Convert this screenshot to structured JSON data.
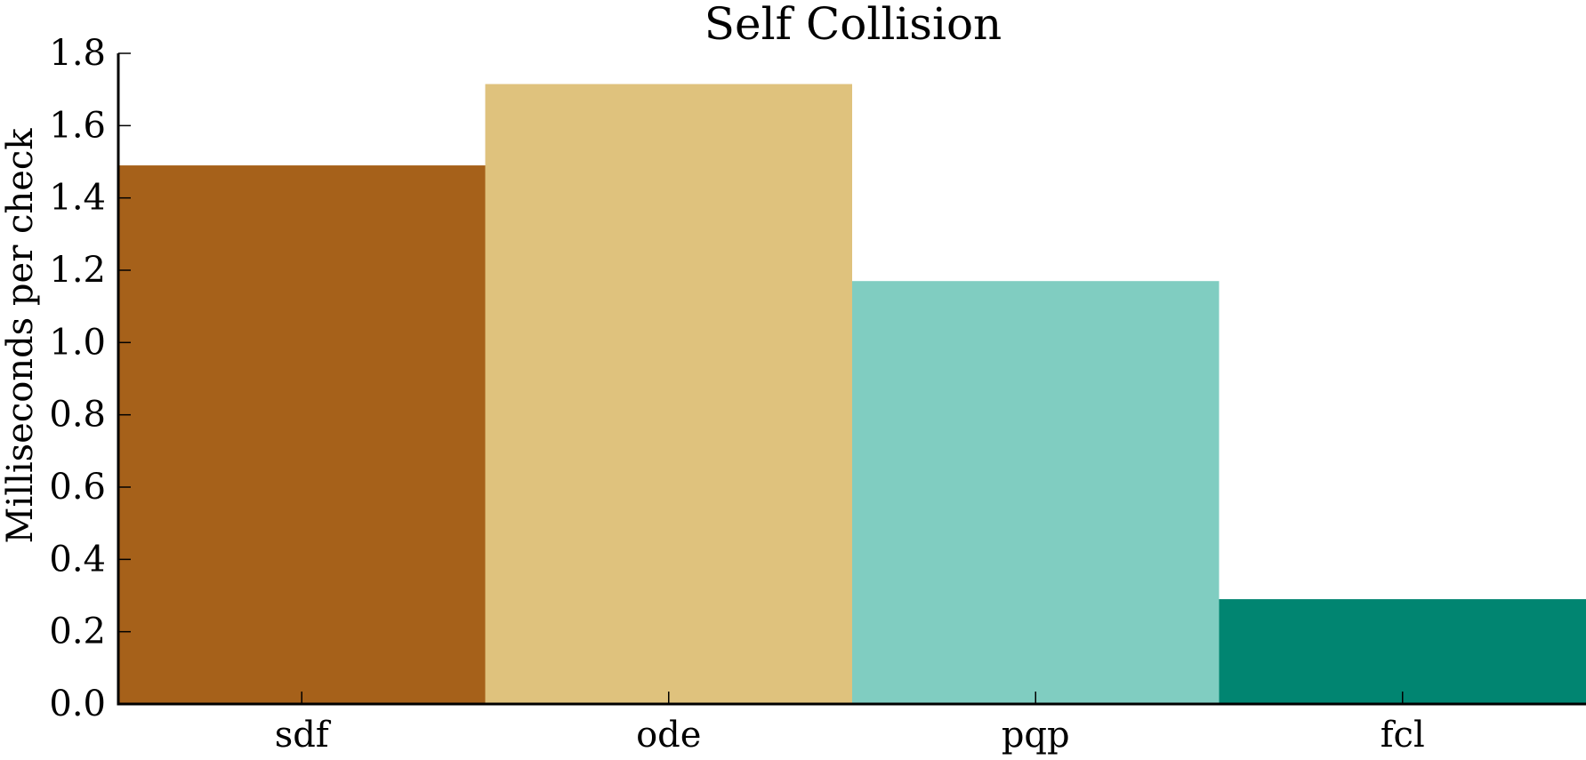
{
  "chart_data": {
    "type": "bar",
    "title": "Self Collision",
    "xlabel": "",
    "ylabel": "Milliseconds per check",
    "categories": [
      "sdf",
      "ode",
      "pqp",
      "fcl"
    ],
    "values": [
      1.49,
      1.715,
      1.17,
      0.29
    ],
    "colors": [
      "#a6611a",
      "#dfc27d",
      "#80cdc1",
      "#018571"
    ],
    "ylim": [
      0.0,
      1.8
    ],
    "yticks": [
      "0.0",
      "0.2",
      "0.4",
      "0.6",
      "0.8",
      "1.0",
      "1.2",
      "1.4",
      "1.6",
      "1.8"
    ],
    "grid": false,
    "legend": "none"
  }
}
